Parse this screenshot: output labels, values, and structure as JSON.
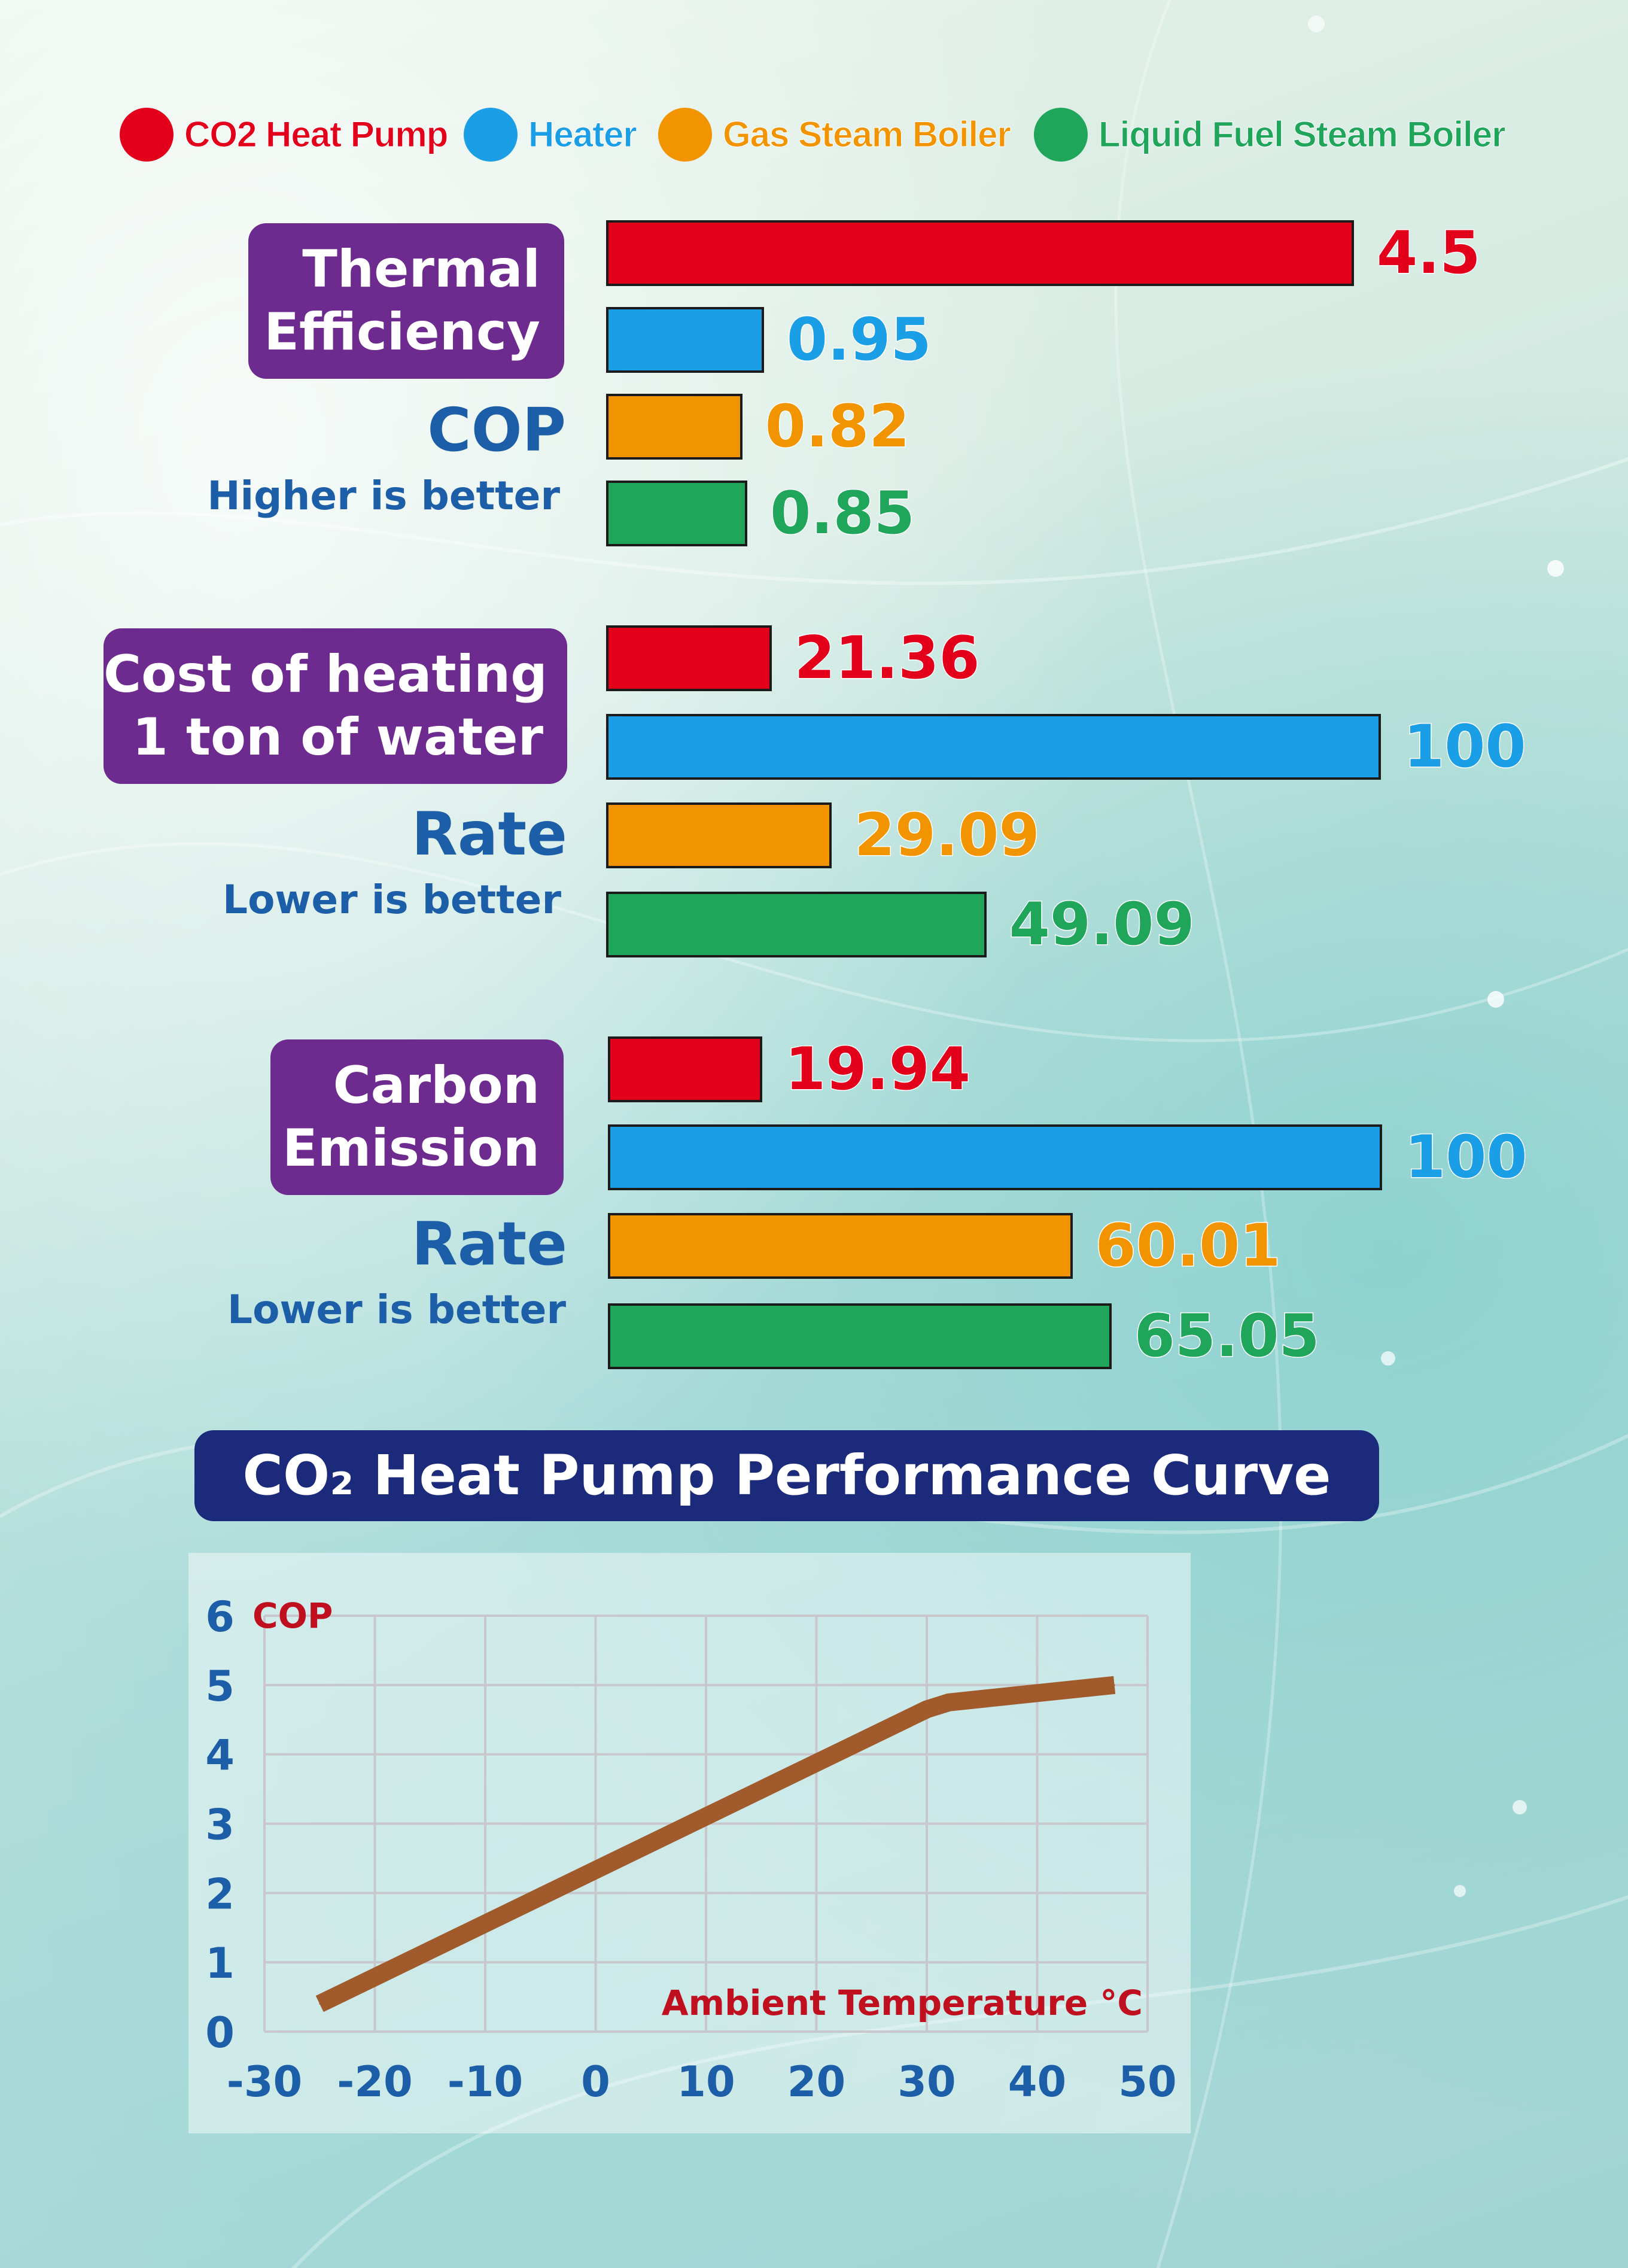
{
  "colors": {
    "co2": "#e3001b",
    "heater": "#1a9ee5",
    "gas": "#f29400",
    "liquid": "#1fa65a",
    "label_bg": "#6d2b8f",
    "metric_text": "#1d5ea8",
    "curve": "#a05a2c",
    "axis_text": "#1d5ea8",
    "axis_title": "#c00f1e"
  },
  "legend": [
    {
      "label": "CO2 Heat Pump",
      "color": "#e3001b"
    },
    {
      "label": "Heater",
      "color": "#1a9ee5"
    },
    {
      "label": "Gas Steam Boiler",
      "color": "#f29400"
    },
    {
      "label": "Liquid Fuel Steam Boiler",
      "color": "#1fa65a"
    }
  ],
  "sections": [
    {
      "label_lines": [
        "Thermal",
        "Efficiency"
      ],
      "metric": "COP",
      "note": "Higher is better"
    },
    {
      "label_lines": [
        "Cost of heating",
        "1 ton of water"
      ],
      "metric": "Rate",
      "note": "Lower is better"
    },
    {
      "label_lines": [
        "Carbon",
        "Emission"
      ],
      "metric": "Rate",
      "note": "Lower is better"
    }
  ],
  "chart_data": [
    {
      "type": "bar",
      "title": "Thermal Efficiency COP",
      "orientation": "horizontal",
      "categories": [
        "CO2 Heat Pump",
        "Heater",
        "Gas Steam Boiler",
        "Liquid Fuel Steam Boiler"
      ],
      "values": [
        4.5,
        0.95,
        0.82,
        0.85
      ],
      "value_labels": [
        "4.5",
        "0.95",
        "0.82",
        "0.85"
      ],
      "xlim": [
        0,
        4.5
      ]
    },
    {
      "type": "bar",
      "title": "Cost of heating 1 ton of water Rate",
      "orientation": "horizontal",
      "categories": [
        "CO2 Heat Pump",
        "Heater",
        "Gas Steam Boiler",
        "Liquid Fuel Steam Boiler"
      ],
      "values": [
        21.36,
        100,
        29.09,
        49.09
      ],
      "value_labels": [
        "21.36",
        "100",
        "29.09",
        "49.09"
      ],
      "xlim": [
        0,
        100
      ]
    },
    {
      "type": "bar",
      "title": "Carbon Emission Rate",
      "orientation": "horizontal",
      "categories": [
        "CO2 Heat Pump",
        "Heater",
        "Gas Steam Boiler",
        "Liquid Fuel Steam Boiler"
      ],
      "values": [
        19.94,
        100,
        60.01,
        65.05
      ],
      "value_labels": [
        "19.94",
        "100",
        "60.01",
        "65.05"
      ],
      "xlim": [
        0,
        100
      ]
    },
    {
      "type": "line",
      "title": "CO₂ Heat Pump Performance Curve",
      "xlabel": "Ambient Temperature °C",
      "ylabel": "COP",
      "xlim": [
        -30,
        50
      ],
      "ylim": [
        0,
        6
      ],
      "xticks": [
        "-30",
        "-20",
        "-10",
        "0",
        "10",
        "20",
        "30",
        "40",
        "50"
      ],
      "yticks": [
        "0",
        "1",
        "2",
        "3",
        "4",
        "5",
        "6"
      ],
      "grid": true,
      "x": [
        -25,
        30,
        32,
        47
      ],
      "y": [
        0.4,
        4.65,
        4.75,
        5.0
      ]
    }
  ]
}
